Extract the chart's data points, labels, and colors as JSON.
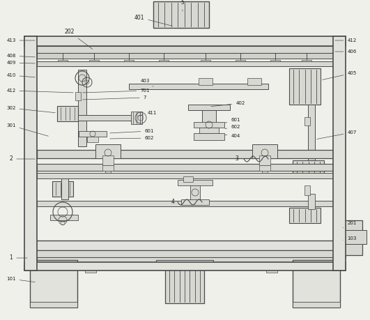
{
  "bg_color": "#f0f0eb",
  "line_color": "#4a4a4a",
  "fc_wall": "#e2e2dc",
  "fc_inner": "#d8d8d2",
  "fc_motor": "#c8c8c0",
  "fc_light": "#eaeae4"
}
